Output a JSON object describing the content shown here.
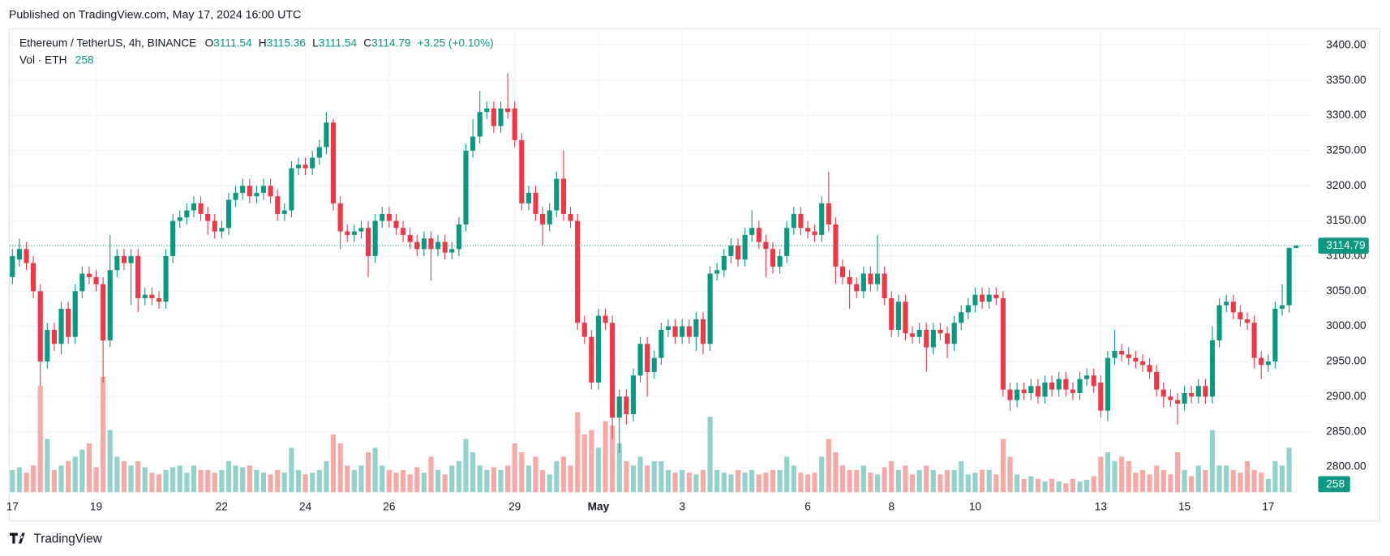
{
  "header": "Published on TradingView.com, May 17, 2024 16:00 UTC",
  "brand": "TradingView",
  "chart_data": {
    "type": "candlestick",
    "symbol": "Ethereum / TetherUS, 4h, BINANCE",
    "ohlc_labels": [
      "O",
      "H",
      "L",
      "C"
    ],
    "change": "+3.25 (+0.10%)",
    "volume_label": "Vol · ETH",
    "up_color": "#089981",
    "down_color": "#f23645",
    "up_volume_color": "#92d2cc",
    "down_volume_color": "#f7a9a7",
    "grid": true,
    "ylim": [
      2764,
      3424
    ],
    "yticks": [
      {
        "value": 2800,
        "label": "2800.00"
      },
      {
        "value": 2850,
        "label": "2850.00"
      },
      {
        "value": 2900,
        "label": "2900.00"
      },
      {
        "value": 2950,
        "label": "2950.00"
      },
      {
        "value": 3000,
        "label": "3000.00"
      },
      {
        "value": 3050,
        "label": "3050.00"
      },
      {
        "value": 3100,
        "label": "3100.00"
      },
      {
        "value": 3150,
        "label": "3150.00"
      },
      {
        "value": 3200,
        "label": "3200.00"
      },
      {
        "value": 3250,
        "label": "3250.00"
      },
      {
        "value": 3300,
        "label": "3300.00"
      },
      {
        "value": 3350,
        "label": "3350.00"
      },
      {
        "value": 3400,
        "label": "3400.00"
      }
    ],
    "xticks": [
      {
        "value": "2024-04-17 00:00",
        "label": "17"
      },
      {
        "value": "2024-04-19 00:00",
        "label": "19"
      },
      {
        "value": "2024-04-22 00:00",
        "label": "22"
      },
      {
        "value": "2024-04-24 00:00",
        "label": "24"
      },
      {
        "value": "2024-04-26 00:00",
        "label": "26"
      },
      {
        "value": "2024-04-29 00:00",
        "label": "29"
      },
      {
        "value": "2024-05-01 00:00",
        "label": "May",
        "bold": true
      },
      {
        "value": "2024-05-03 00:00",
        "label": "3"
      },
      {
        "value": "2024-05-06 00:00",
        "label": "6"
      },
      {
        "value": "2024-05-08 00:00",
        "label": "8"
      },
      {
        "value": "2024-05-10 00:00",
        "label": "10"
      },
      {
        "value": "2024-05-13 00:00",
        "label": "13"
      },
      {
        "value": "2024-05-15 00:00",
        "label": "15"
      },
      {
        "value": "2024-05-17 00:00",
        "label": "17"
      }
    ],
    "x": [
      "2024-04-17 00:00",
      "2024-04-17 04:00",
      "2024-04-17 08:00",
      "2024-04-17 12:00",
      "2024-04-17 16:00",
      "2024-04-17 20:00",
      "2024-04-18 00:00",
      "2024-04-18 04:00",
      "2024-04-18 08:00",
      "2024-04-18 12:00",
      "2024-04-18 16:00",
      "2024-04-18 20:00",
      "2024-04-19 00:00",
      "2024-04-19 04:00",
      "2024-04-19 08:00",
      "2024-04-19 12:00",
      "2024-04-19 16:00",
      "2024-04-19 20:00",
      "2024-04-20 00:00",
      "2024-04-20 04:00",
      "2024-04-20 08:00",
      "2024-04-20 12:00",
      "2024-04-20 16:00",
      "2024-04-20 20:00",
      "2024-04-21 00:00",
      "2024-04-21 04:00",
      "2024-04-21 08:00",
      "2024-04-21 12:00",
      "2024-04-21 16:00",
      "2024-04-21 20:00",
      "2024-04-22 00:00",
      "2024-04-22 04:00",
      "2024-04-22 08:00",
      "2024-04-22 12:00",
      "2024-04-22 16:00",
      "2024-04-22 20:00",
      "2024-04-23 00:00",
      "2024-04-23 04:00",
      "2024-04-23 08:00",
      "2024-04-23 12:00",
      "2024-04-23 16:00",
      "2024-04-23 20:00",
      "2024-04-24 00:00",
      "2024-04-24 04:00",
      "2024-04-24 08:00",
      "2024-04-24 12:00",
      "2024-04-24 16:00",
      "2024-04-24 20:00",
      "2024-04-25 00:00",
      "2024-04-25 04:00",
      "2024-04-25 08:00",
      "2024-04-25 12:00",
      "2024-04-25 16:00",
      "2024-04-25 20:00",
      "2024-04-26 00:00",
      "2024-04-26 04:00",
      "2024-04-26 08:00",
      "2024-04-26 12:00",
      "2024-04-26 16:00",
      "2024-04-26 20:00",
      "2024-04-27 00:00",
      "2024-04-27 04:00",
      "2024-04-27 08:00",
      "2024-04-27 12:00",
      "2024-04-27 16:00",
      "2024-04-27 20:00",
      "2024-04-28 00:00",
      "2024-04-28 04:00",
      "2024-04-28 08:00",
      "2024-04-28 12:00",
      "2024-04-28 16:00",
      "2024-04-28 20:00",
      "2024-04-29 00:00",
      "2024-04-29 04:00",
      "2024-04-29 08:00",
      "2024-04-29 12:00",
      "2024-04-29 16:00",
      "2024-04-29 20:00",
      "2024-04-30 00:00",
      "2024-04-30 04:00",
      "2024-04-30 08:00",
      "2024-04-30 12:00",
      "2024-04-30 16:00",
      "2024-04-30 20:00",
      "2024-05-01 00:00",
      "2024-05-01 04:00",
      "2024-05-01 08:00",
      "2024-05-01 12:00",
      "2024-05-01 16:00",
      "2024-05-01 20:00",
      "2024-05-02 00:00",
      "2024-05-02 04:00",
      "2024-05-02 08:00",
      "2024-05-02 12:00",
      "2024-05-02 16:00",
      "2024-05-02 20:00",
      "2024-05-03 00:00",
      "2024-05-03 04:00",
      "2024-05-03 08:00",
      "2024-05-03 12:00",
      "2024-05-03 16:00",
      "2024-05-03 20:00",
      "2024-05-04 00:00",
      "2024-05-04 04:00",
      "2024-05-04 08:00",
      "2024-05-04 12:00",
      "2024-05-04 16:00",
      "2024-05-04 20:00",
      "2024-05-05 00:00",
      "2024-05-05 04:00",
      "2024-05-05 08:00",
      "2024-05-05 12:00",
      "2024-05-05 16:00",
      "2024-05-05 20:00",
      "2024-05-06 00:00",
      "2024-05-06 04:00",
      "2024-05-06 08:00",
      "2024-05-06 12:00",
      "2024-05-06 16:00",
      "2024-05-06 20:00",
      "2024-05-07 00:00",
      "2024-05-07 04:00",
      "2024-05-07 08:00",
      "2024-05-07 12:00",
      "2024-05-07 16:00",
      "2024-05-07 20:00",
      "2024-05-08 00:00",
      "2024-05-08 04:00",
      "2024-05-08 08:00",
      "2024-05-08 12:00",
      "2024-05-08 16:00",
      "2024-05-08 20:00",
      "2024-05-09 00:00",
      "2024-05-09 04:00",
      "2024-05-09 08:00",
      "2024-05-09 12:00",
      "2024-05-09 16:00",
      "2024-05-09 20:00",
      "2024-05-10 00:00",
      "2024-05-10 04:00",
      "2024-05-10 08:00",
      "2024-05-10 12:00",
      "2024-05-10 16:00",
      "2024-05-10 20:00",
      "2024-05-11 00:00",
      "2024-05-11 04:00",
      "2024-05-11 08:00",
      "2024-05-11 12:00",
      "2024-05-11 16:00",
      "2024-05-11 20:00",
      "2024-05-12 00:00",
      "2024-05-12 04:00",
      "2024-05-12 08:00",
      "2024-05-12 12:00",
      "2024-05-12 16:00",
      "2024-05-12 20:00",
      "2024-05-13 00:00",
      "2024-05-13 04:00",
      "2024-05-13 08:00",
      "2024-05-13 12:00",
      "2024-05-13 16:00",
      "2024-05-13 20:00",
      "2024-05-14 00:00",
      "2024-05-14 04:00",
      "2024-05-14 08:00",
      "2024-05-14 12:00",
      "2024-05-14 16:00",
      "2024-05-14 20:00",
      "2024-05-15 00:00",
      "2024-05-15 04:00",
      "2024-05-15 08:00",
      "2024-05-15 12:00",
      "2024-05-15 16:00",
      "2024-05-15 20:00",
      "2024-05-16 00:00",
      "2024-05-16 04:00",
      "2024-05-16 08:00",
      "2024-05-16 12:00",
      "2024-05-16 16:00",
      "2024-05-16 20:00",
      "2024-05-17 00:00",
      "2024-05-17 04:00",
      "2024-05-17 08:00",
      "2024-05-17 12:00",
      "2024-05-17 16:00"
    ],
    "open": [
      3070,
      3095,
      3110,
      3090,
      3050,
      2950,
      2995,
      2975,
      3025,
      2985,
      3050,
      3075,
      3070,
      3060,
      2980,
      3080,
      3100,
      3090,
      3100,
      3040,
      3045,
      3040,
      3035,
      3100,
      3150,
      3155,
      3165,
      3175,
      3160,
      3150,
      3135,
      3140,
      3180,
      3190,
      3200,
      3185,
      3190,
      3200,
      3185,
      3160,
      3165,
      3225,
      3230,
      3225,
      3240,
      3255,
      3290,
      3175,
      3135,
      3130,
      3135,
      3140,
      3100,
      3150,
      3160,
      3150,
      3140,
      3130,
      3120,
      3110,
      3125,
      3110,
      3120,
      3105,
      3110,
      3145,
      3250,
      3270,
      3305,
      3310,
      3285,
      3310,
      3310,
      3265,
      3175,
      3190,
      3160,
      3145,
      3165,
      3210,
      3160,
      3150,
      3005,
      2985,
      2920,
      3015,
      3005,
      2870,
      2900,
      2875,
      2930,
      2975,
      2935,
      2955,
      2995,
      3000,
      2985,
      3000,
      2985,
      3010,
      2975,
      3075,
      3080,
      3100,
      3115,
      3095,
      3130,
      3140,
      3120,
      3110,
      3085,
      3100,
      3140,
      3160,
      3140,
      3135,
      3130,
      3175,
      3145,
      3085,
      3070,
      3060,
      3050,
      3075,
      3060,
      3075,
      3040,
      2995,
      3035,
      2990,
      2985,
      2995,
      2970,
      2995,
      2990,
      2975,
      3005,
      3020,
      3030,
      3045,
      3035,
      3045,
      3040,
      2910,
      2895,
      2910,
      2905,
      2915,
      2900,
      2920,
      2910,
      2925,
      2910,
      2905,
      2925,
      2930,
      2920,
      2880,
      2955,
      2965,
      2960,
      2955,
      2950,
      2945,
      2935,
      2910,
      2900,
      2895,
      2890,
      2905,
      2900,
      2915,
      2900,
      2980,
      3030,
      3035,
      3020,
      3010,
      3005,
      2955,
      2945,
      2950,
      3025,
      3030,
      3111.54
    ],
    "high": [
      3110,
      3125,
      3120,
      3100,
      3060,
      3005,
      3005,
      3035,
      3035,
      3060,
      3085,
      3085,
      3080,
      3070,
      3130,
      3110,
      3110,
      3110,
      3110,
      3055,
      3055,
      3050,
      3110,
      3160,
      3165,
      3175,
      3185,
      3185,
      3170,
      3160,
      3150,
      3190,
      3200,
      3210,
      3210,
      3200,
      3210,
      3210,
      3195,
      3175,
      3235,
      3240,
      3240,
      3250,
      3265,
      3305,
      3295,
      3185,
      3145,
      3145,
      3150,
      3150,
      3160,
      3170,
      3170,
      3160,
      3150,
      3140,
      3130,
      3135,
      3135,
      3130,
      3130,
      3120,
      3155,
      3260,
      3295,
      3335,
      3320,
      3320,
      3320,
      3360,
      3320,
      3275,
      3200,
      3200,
      3170,
      3175,
      3220,
      3250,
      3170,
      3160,
      3015,
      2995,
      3025,
      3025,
      3015,
      2910,
      2910,
      2940,
      2985,
      2985,
      2965,
      3005,
      3010,
      3010,
      3010,
      3010,
      3020,
      3020,
      3085,
      3090,
      3110,
      3125,
      3125,
      3140,
      3165,
      3150,
      3130,
      3120,
      3110,
      3150,
      3170,
      3170,
      3150,
      3145,
      3185,
      3220,
      3155,
      3095,
      3080,
      3070,
      3085,
      3085,
      3130,
      3085,
      3050,
      3045,
      3045,
      3000,
      3005,
      3005,
      3005,
      3005,
      3000,
      3015,
      3030,
      3040,
      3055,
      3055,
      3055,
      3055,
      3050,
      2920,
      2920,
      2920,
      2925,
      2925,
      2930,
      2930,
      2935,
      2935,
      2920,
      2935,
      2940,
      2940,
      2930,
      2965,
      2995,
      2975,
      2970,
      2965,
      2960,
      2955,
      2945,
      2920,
      2910,
      2905,
      2915,
      2915,
      2925,
      2925,
      3000,
      3040,
      3045,
      3045,
      3030,
      3020,
      3015,
      2965,
      2960,
      3035,
      3060,
      3112,
      3115.36
    ],
    "low": [
      3060,
      3085,
      3080,
      3040,
      2915,
      2940,
      2965,
      2960,
      2975,
      2975,
      3040,
      3060,
      3050,
      2920,
      2970,
      3070,
      3080,
      3030,
      3020,
      3030,
      3030,
      3025,
      3025,
      3090,
      3140,
      3145,
      3155,
      3150,
      3130,
      3125,
      3125,
      3130,
      3170,
      3180,
      3175,
      3175,
      3180,
      3175,
      3150,
      3150,
      3155,
      3215,
      3215,
      3215,
      3230,
      3245,
      3165,
      3110,
      3120,
      3120,
      3125,
      3070,
      3090,
      3140,
      3140,
      3130,
      3120,
      3110,
      3100,
      3100,
      3065,
      3100,
      3095,
      3095,
      3100,
      3135,
      3240,
      3260,
      3295,
      3275,
      3275,
      3295,
      3255,
      3165,
      3165,
      3150,
      3115,
      3135,
      3155,
      3150,
      3140,
      2995,
      2975,
      2910,
      2910,
      2995,
      2840,
      2820,
      2860,
      2865,
      2920,
      2900,
      2925,
      2945,
      2985,
      2975,
      2975,
      2975,
      2965,
      2960,
      2965,
      3065,
      3070,
      3090,
      3085,
      3085,
      3120,
      3110,
      3070,
      3075,
      3075,
      3090,
      3130,
      3130,
      3125,
      3120,
      3120,
      3135,
      3060,
      3060,
      3025,
      3040,
      3040,
      3050,
      3050,
      3030,
      2985,
      2985,
      2980,
      2975,
      2975,
      2935,
      2960,
      2980,
      2955,
      2965,
      2995,
      3010,
      3020,
      3025,
      3025,
      3030,
      2900,
      2880,
      2885,
      2895,
      2895,
      2890,
      2890,
      2900,
      2900,
      2900,
      2895,
      2895,
      2915,
      2905,
      2870,
      2865,
      2945,
      2950,
      2945,
      2940,
      2935,
      2925,
      2900,
      2885,
      2885,
      2860,
      2880,
      2890,
      2890,
      2890,
      2890,
      2970,
      3020,
      3010,
      3000,
      2995,
      2940,
      2925,
      2935,
      2940,
      3015,
      3020,
      3111.54
    ],
    "close": [
      3100,
      3110,
      3090,
      3050,
      2950,
      2995,
      2975,
      3025,
      2985,
      3050,
      3075,
      3070,
      3060,
      2980,
      3080,
      3100,
      3090,
      3100,
      3040,
      3045,
      3040,
      3035,
      3100,
      3150,
      3155,
      3165,
      3175,
      3160,
      3150,
      3135,
      3140,
      3180,
      3190,
      3200,
      3185,
      3190,
      3200,
      3185,
      3160,
      3165,
      3225,
      3230,
      3225,
      3240,
      3255,
      3290,
      3175,
      3135,
      3130,
      3135,
      3140,
      3100,
      3150,
      3160,
      3150,
      3140,
      3130,
      3120,
      3110,
      3125,
      3110,
      3120,
      3105,
      3110,
      3145,
      3250,
      3270,
      3305,
      3310,
      3285,
      3310,
      3305,
      3265,
      3175,
      3190,
      3160,
      3145,
      3165,
      3210,
      3160,
      3150,
      3005,
      2985,
      2920,
      3015,
      3005,
      2870,
      2900,
      2875,
      2930,
      2975,
      2935,
      2955,
      2995,
      3000,
      2985,
      3000,
      2985,
      3010,
      2975,
      3075,
      3080,
      3100,
      3115,
      3095,
      3130,
      3140,
      3120,
      3110,
      3085,
      3100,
      3140,
      3160,
      3140,
      3135,
      3130,
      3175,
      3145,
      3085,
      3070,
      3060,
      3050,
      3075,
      3060,
      3075,
      3040,
      2995,
      3035,
      2990,
      2985,
      2995,
      2970,
      2995,
      2990,
      2975,
      3005,
      3020,
      3030,
      3045,
      3035,
      3045,
      3040,
      2910,
      2895,
      2910,
      2905,
      2915,
      2900,
      2920,
      2910,
      2925,
      2910,
      2905,
      2925,
      2930,
      2915,
      2880,
      2955,
      2965,
      2960,
      2955,
      2950,
      2945,
      2935,
      2910,
      2900,
      2895,
      2890,
      2905,
      2900,
      2915,
      2900,
      2980,
      3030,
      3035,
      3020,
      3010,
      3005,
      2955,
      2945,
      2950,
      3025,
      3030,
      3111.54,
      3114.79
    ],
    "volume": [
      25000,
      28000,
      22000,
      30000,
      120000,
      60000,
      25000,
      30000,
      35000,
      40000,
      48000,
      55000,
      28000,
      130000,
      70000,
      40000,
      35000,
      30000,
      35000,
      28000,
      22000,
      20000,
      25000,
      28000,
      30000,
      22000,
      30000,
      25000,
      25000,
      22000,
      25000,
      35000,
      30000,
      28000,
      30000,
      25000,
      22000,
      20000,
      25000,
      22000,
      50000,
      25000,
      20000,
      22000,
      25000,
      35000,
      65000,
      55000,
      30000,
      25000,
      30000,
      45000,
      50000,
      30000,
      25000,
      22000,
      25000,
      20000,
      28000,
      22000,
      40000,
      25000,
      20000,
      30000,
      35000,
      60000,
      45000,
      30000,
      25000,
      28000,
      25000,
      30000,
      55000,
      45000,
      30000,
      40000,
      25000,
      20000,
      35000,
      40000,
      30000,
      90000,
      65000,
      70000,
      50000,
      80000,
      75000,
      55000,
      35000,
      30000,
      40000,
      30000,
      35000,
      35000,
      25000,
      22000,
      25000,
      22000,
      20000,
      25000,
      85000,
      25000,
      22000,
      20000,
      25000,
      22000,
      25000,
      20000,
      22000,
      25000,
      25000,
      40000,
      30000,
      22000,
      20000,
      22000,
      40000,
      60000,
      45000,
      30000,
      25000,
      25000,
      30000,
      22000,
      20000,
      28000,
      35000,
      25000,
      30000,
      20000,
      25000,
      30000,
      25000,
      20000,
      25000,
      25000,
      35000,
      20000,
      22000,
      25000,
      25000,
      20000,
      60000,
      40000,
      20000,
      15000,
      18000,
      15000,
      12000,
      15000,
      12000,
      10000,
      15000,
      12000,
      14000,
      18000,
      40000,
      45000,
      35000,
      40000,
      35000,
      22000,
      25000,
      20000,
      30000,
      25000,
      20000,
      45000,
      25000,
      18000,
      30000,
      25000,
      70000,
      30000,
      30000,
      25000,
      22000,
      35000,
      25000,
      22000,
      15000,
      35000,
      30000,
      50000,
      258
    ]
  }
}
